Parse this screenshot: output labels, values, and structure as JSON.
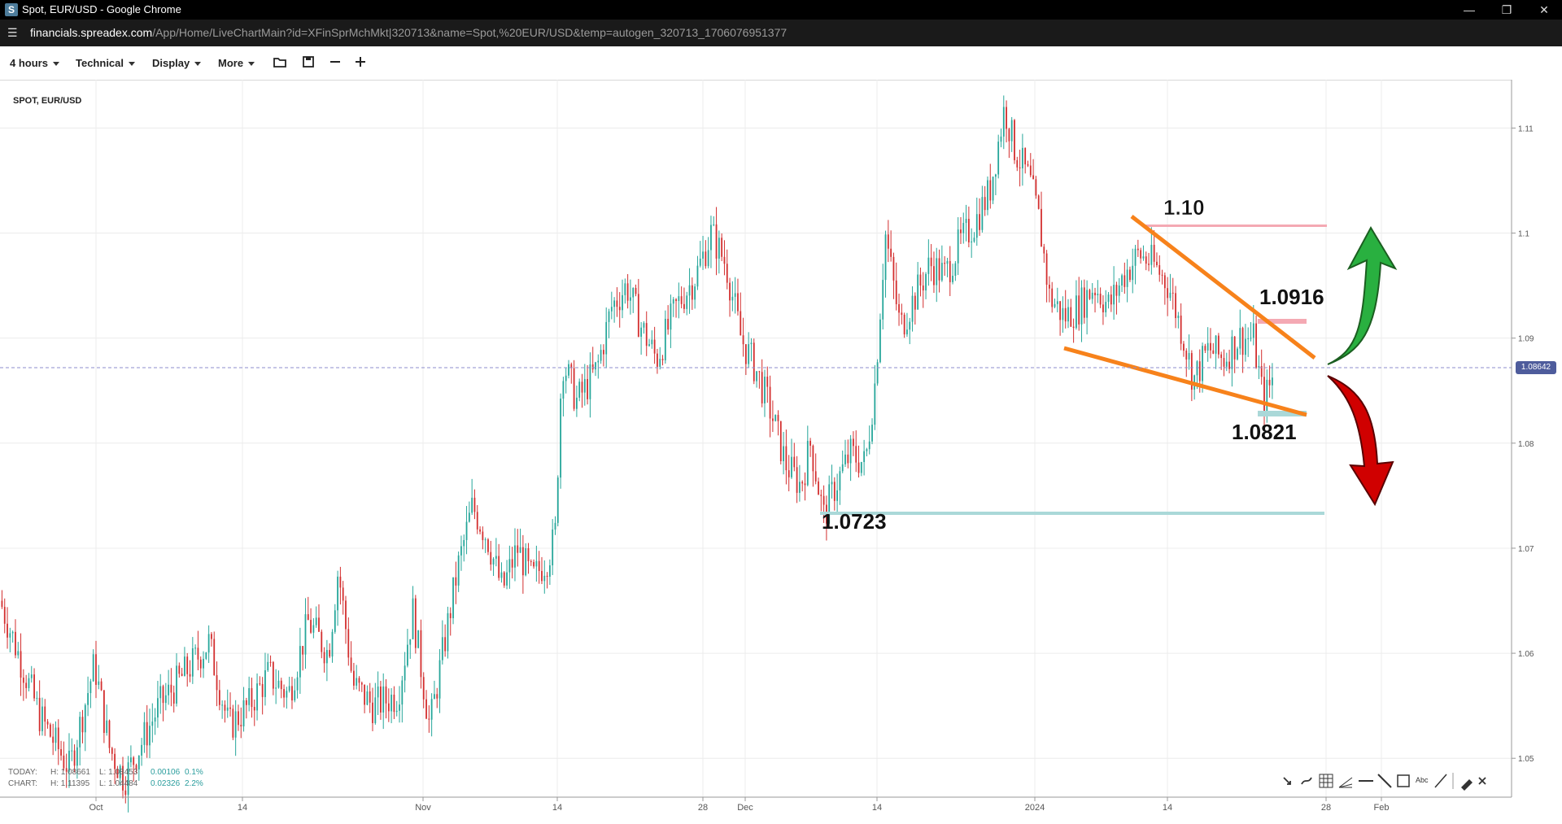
{
  "window": {
    "title": "Spot, EUR/USD - Google Chrome",
    "logo_letter": "S"
  },
  "address": {
    "host": "financials.spreadex.com",
    "path": "/App/Home/LiveChartMain?id=XFinSprMchMkt|320713&name=Spot,%20EUR/USD&temp=autogen_320713_1706076951377"
  },
  "toolbar": {
    "interval": "4 hours",
    "technical": "Technical",
    "display": "Display",
    "more": "More"
  },
  "icons": [
    "folder-icon",
    "save-icon",
    "zoom-out-icon",
    "zoom-in-icon"
  ],
  "symbol": "SPOT, EUR/USD",
  "last_price": "1.08642",
  "stats": {
    "today": {
      "label": "TODAY:",
      "high": "H: 1.08661",
      "low": "L: 1.08453",
      "change": "0.00106",
      "pct": "0.1%"
    },
    "chart": {
      "label": "CHART:",
      "high": "H: 1.11395",
      "low": "L: 1.04484",
      "change": "0.02326",
      "pct": "2.2%"
    }
  },
  "annotations": {
    "res_high": "1.10",
    "res_mid": "1.0916",
    "sup_mid": "1.0821",
    "sup_low": "1.0723"
  },
  "colors": {
    "up": "#26a69a",
    "down": "#d32f2f",
    "trendline": "#f7821b",
    "resistance": "#f4a9b3",
    "support": "#aad8d8",
    "arrow_up": "#29b040",
    "arrow_down": "#d00000"
  },
  "chart_data": {
    "type": "candlestick",
    "x_ticks": [
      "Oct",
      "14",
      "Nov",
      "14",
      "28",
      "Dec",
      "14",
      "2024",
      "14",
      "28",
      "Feb"
    ],
    "y_ticks": [
      "1.11",
      "1.1",
      "1.09",
      "1.08",
      "1.07",
      "1.06",
      "1.05"
    ],
    "ylim": [
      1.0463,
      1.1146
    ],
    "grid": true,
    "close_path": [
      [
        0,
        1.065
      ],
      [
        40,
        1.054
      ],
      [
        70,
        1.049
      ],
      [
        95,
        1.059
      ],
      [
        110,
        1.051
      ],
      [
        125,
        1.048
      ],
      [
        160,
        1.055
      ],
      [
        185,
        1.058
      ],
      [
        210,
        1.061
      ],
      [
        230,
        1.053
      ],
      [
        250,
        1.055
      ],
      [
        270,
        1.058
      ],
      [
        290,
        1.056
      ],
      [
        310,
        1.063
      ],
      [
        330,
        1.06
      ],
      [
        340,
        1.068
      ],
      [
        355,
        1.057
      ],
      [
        375,
        1.055
      ],
      [
        400,
        1.056
      ],
      [
        415,
        1.064
      ],
      [
        432,
        1.053
      ],
      [
        445,
        1.06
      ],
      [
        460,
        1.068
      ],
      [
        475,
        1.074
      ],
      [
        490,
        1.071
      ],
      [
        505,
        1.066
      ],
      [
        520,
        1.07
      ],
      [
        535,
        1.067
      ],
      [
        550,
        1.069
      ],
      [
        558,
        1.071
      ],
      [
        565,
        1.088
      ],
      [
        580,
        1.084
      ],
      [
        600,
        1.087
      ],
      [
        615,
        1.093
      ],
      [
        630,
        1.095
      ],
      [
        645,
        1.091
      ],
      [
        660,
        1.088
      ],
      [
        680,
        1.093
      ],
      [
        700,
        1.096
      ],
      [
        715,
        1.1
      ],
      [
        730,
        1.097
      ],
      [
        745,
        1.09
      ],
      [
        760,
        1.087
      ],
      [
        775,
        1.083
      ],
      [
        790,
        1.078
      ],
      [
        805,
        1.076
      ],
      [
        815,
        1.08
      ],
      [
        828,
        1.073
      ],
      [
        840,
        1.076
      ],
      [
        855,
        1.079
      ],
      [
        870,
        1.078
      ],
      [
        880,
        1.086
      ],
      [
        890,
        1.1
      ],
      [
        905,
        1.091
      ],
      [
        920,
        1.094
      ],
      [
        935,
        1.097
      ],
      [
        950,
        1.096
      ],
      [
        965,
        1.099
      ],
      [
        980,
        1.101
      ],
      [
        995,
        1.104
      ],
      [
        1010,
        1.112
      ],
      [
        1020,
        1.108
      ],
      [
        1035,
        1.105
      ],
      [
        1045,
        1.101
      ],
      [
        1055,
        1.094
      ],
      [
        1070,
        1.092
      ],
      [
        1085,
        1.093
      ],
      [
        1100,
        1.095
      ],
      [
        1115,
        1.093
      ],
      [
        1130,
        1.096
      ],
      [
        1145,
        1.098
      ],
      [
        1160,
        1.097
      ],
      [
        1175,
        1.095
      ],
      [
        1190,
        1.09
      ],
      [
        1200,
        1.086
      ],
      [
        1215,
        1.089
      ],
      [
        1230,
        1.088
      ],
      [
        1245,
        1.09
      ],
      [
        1260,
        1.09
      ],
      [
        1270,
        1.084
      ],
      [
        1275,
        1.085
      ],
      [
        1280,
        1.0864
      ]
    ]
  }
}
